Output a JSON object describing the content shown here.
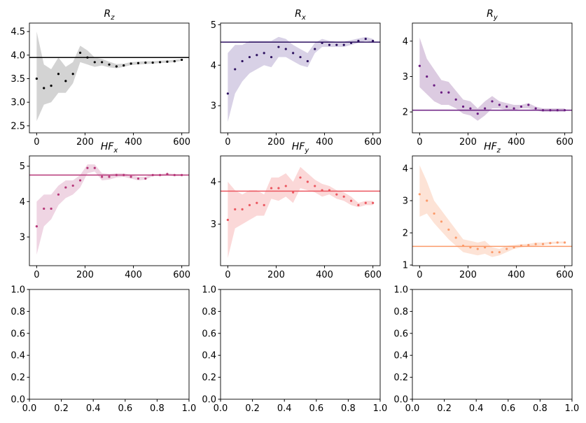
{
  "chart_data": [
    {
      "type": "scatter",
      "title": "R",
      "title_subscript": "z",
      "color": "#000000",
      "band_color": "#d3d3d3",
      "x": [
        0,
        30,
        60,
        90,
        120,
        150,
        180,
        210,
        240,
        270,
        300,
        330,
        360,
        390,
        420,
        450,
        480,
        510,
        540,
        570,
        600
      ],
      "values": [
        3.5,
        3.3,
        3.35,
        3.6,
        3.45,
        3.6,
        4.05,
        3.95,
        3.85,
        3.85,
        3.8,
        3.76,
        3.78,
        3.82,
        3.83,
        3.84,
        3.84,
        3.85,
        3.86,
        3.87,
        3.9
      ],
      "band_lower": [
        2.6,
        2.95,
        3.0,
        3.2,
        3.2,
        3.4,
        3.85,
        3.8,
        3.75,
        3.78,
        3.74,
        3.72,
        3.75,
        3.79,
        3.8,
        3.81,
        3.82,
        3.83,
        3.84,
        3.85,
        3.88
      ],
      "band_upper": [
        4.5,
        3.8,
        3.7,
        3.95,
        3.75,
        3.85,
        4.2,
        4.1,
        3.95,
        3.92,
        3.86,
        3.81,
        3.82,
        3.85,
        3.86,
        3.87,
        3.87,
        3.88,
        3.89,
        3.9,
        3.92
      ],
      "reference_line": 3.95,
      "xlim": [
        -30,
        630
      ],
      "xticks": [
        0,
        200,
        400,
        600
      ],
      "ylim": [
        2.35,
        4.68
      ],
      "yticks": [
        2.5,
        {
          "value": 3,
          "label": "3.0"
        },
        3.5,
        {
          "value": 4,
          "label": "4.0"
        },
        4.5
      ]
    },
    {
      "type": "scatter",
      "title": "R",
      "title_subscript": "x",
      "color": "#2d1160",
      "band_color": "#d8d1e6",
      "x": [
        0,
        30,
        60,
        90,
        120,
        150,
        180,
        210,
        240,
        270,
        300,
        330,
        360,
        390,
        420,
        450,
        480,
        510,
        540,
        570,
        600
      ],
      "values": [
        3.3,
        3.9,
        4.1,
        4.2,
        4.25,
        4.3,
        4.2,
        4.45,
        4.4,
        4.3,
        4.2,
        4.1,
        4.4,
        4.55,
        4.5,
        4.5,
        4.5,
        4.55,
        4.6,
        4.65,
        4.6
      ],
      "band_lower": [
        2.6,
        3.3,
        3.6,
        3.8,
        3.9,
        4.0,
        3.95,
        4.2,
        4.2,
        4.1,
        4.0,
        3.95,
        4.3,
        4.45,
        4.45,
        4.45,
        4.45,
        4.5,
        4.55,
        4.6,
        4.57
      ],
      "band_upper": [
        4.3,
        4.5,
        4.5,
        4.6,
        4.6,
        4.6,
        4.6,
        4.7,
        4.65,
        4.5,
        4.4,
        4.3,
        4.55,
        4.65,
        4.6,
        4.58,
        4.58,
        4.62,
        4.66,
        4.7,
        4.65
      ],
      "reference_line": 4.57,
      "xlim": [
        -30,
        630
      ],
      "xticks": [
        0,
        200,
        400,
        600
      ],
      "ylim": [
        2.33,
        5.04
      ],
      "yticks": [
        3,
        4,
        5
      ]
    },
    {
      "type": "scatter",
      "title": "R",
      "title_subscript": "y",
      "color": "#6a1c81",
      "band_color": "#dccbe1",
      "x": [
        0,
        30,
        60,
        90,
        120,
        150,
        180,
        210,
        240,
        270,
        300,
        330,
        360,
        390,
        420,
        450,
        480,
        510,
        540,
        570,
        600
      ],
      "values": [
        3.3,
        3.0,
        2.75,
        2.55,
        2.55,
        2.35,
        2.15,
        2.1,
        1.95,
        2.1,
        2.3,
        2.2,
        2.15,
        2.1,
        2.15,
        2.2,
        2.1,
        2.05,
        2.05,
        2.05,
        2.05
      ],
      "band_lower": [
        2.7,
        2.5,
        2.3,
        2.2,
        2.2,
        2.1,
        1.95,
        1.9,
        1.75,
        1.9,
        2.1,
        2.1,
        2.05,
        2.05,
        2.1,
        2.1,
        2.05,
        2.0,
        2.0,
        2.0,
        2.0
      ],
      "band_upper": [
        4.1,
        3.5,
        3.2,
        2.9,
        2.85,
        2.6,
        2.35,
        2.3,
        2.1,
        2.3,
        2.45,
        2.3,
        2.25,
        2.2,
        2.2,
        2.25,
        2.15,
        2.1,
        2.1,
        2.1,
        2.1
      ],
      "reference_line": 2.05,
      "xlim": [
        -30,
        630
      ],
      "xticks": [
        0,
        200,
        400,
        600
      ],
      "ylim": [
        1.41,
        4.51
      ],
      "yticks": [
        2,
        3,
        4
      ]
    },
    {
      "type": "scatter",
      "title": "HF",
      "title_subscript": "x",
      "color": "#b73779",
      "band_color": "#efd5e3",
      "x": [
        0,
        30,
        60,
        90,
        120,
        150,
        180,
        210,
        240,
        270,
        300,
        330,
        360,
        390,
        420,
        450,
        480,
        510,
        540,
        570,
        600
      ],
      "values": [
        3.3,
        3.8,
        3.8,
        4.2,
        4.4,
        4.45,
        4.6,
        4.95,
        4.95,
        4.7,
        4.7,
        4.75,
        4.75,
        4.7,
        4.65,
        4.65,
        4.75,
        4.75,
        4.78,
        4.75,
        4.75
      ],
      "band_lower": [
        2.5,
        3.3,
        3.5,
        3.9,
        4.1,
        4.2,
        4.4,
        4.8,
        4.85,
        4.6,
        4.62,
        4.68,
        4.7,
        4.65,
        4.6,
        4.62,
        4.72,
        4.72,
        4.75,
        4.72,
        4.72
      ],
      "band_upper": [
        4.0,
        4.2,
        4.2,
        4.45,
        4.6,
        4.6,
        4.75,
        5.05,
        5.05,
        4.8,
        4.78,
        4.8,
        4.8,
        4.75,
        4.7,
        4.7,
        4.78,
        4.78,
        4.8,
        4.78,
        4.78
      ],
      "reference_line": 4.75,
      "xlim": [
        -30,
        630
      ],
      "xticks": [
        0,
        200,
        400,
        600
      ],
      "ylim": [
        2.19,
        5.29
      ],
      "yticks": [
        3,
        4,
        5
      ]
    },
    {
      "type": "scatter",
      "title": "HF",
      "title_subscript": "y",
      "color": "#eb5760",
      "band_color": "#fbd8d8",
      "x": [
        0,
        30,
        60,
        90,
        120,
        150,
        180,
        210,
        240,
        270,
        300,
        330,
        360,
        390,
        420,
        450,
        480,
        510,
        540,
        570,
        600
      ],
      "values": [
        3.1,
        3.35,
        3.35,
        3.45,
        3.5,
        3.45,
        3.85,
        3.85,
        3.9,
        3.75,
        4.1,
        4.0,
        3.9,
        3.8,
        3.8,
        3.7,
        3.65,
        3.55,
        3.45,
        3.5,
        3.5
      ],
      "band_lower": [
        2.2,
        2.9,
        3.0,
        3.1,
        3.2,
        3.2,
        3.6,
        3.55,
        3.65,
        3.5,
        3.85,
        3.8,
        3.75,
        3.65,
        3.7,
        3.6,
        3.55,
        3.45,
        3.4,
        3.45,
        3.45
      ],
      "band_upper": [
        4.0,
        3.8,
        3.7,
        3.8,
        3.8,
        3.7,
        4.1,
        4.1,
        4.2,
        4.0,
        4.35,
        4.2,
        4.05,
        3.95,
        3.9,
        3.8,
        3.75,
        3.65,
        3.5,
        3.55,
        3.55
      ],
      "reference_line": 3.78,
      "xlim": [
        -30,
        630
      ],
      "xticks": [
        0,
        200,
        400,
        600
      ],
      "ylim": [
        2.02,
        4.61
      ],
      "yticks": [
        3,
        4
      ]
    },
    {
      "type": "scatter",
      "title": "HF",
      "title_subscript": "z",
      "color": "#fb9a6a",
      "band_color": "#fde3d6",
      "x": [
        0,
        30,
        60,
        90,
        120,
        150,
        180,
        210,
        240,
        270,
        300,
        330,
        360,
        390,
        420,
        450,
        480,
        510,
        540,
        570,
        600
      ],
      "values": [
        3.2,
        3.0,
        2.6,
        2.35,
        2.1,
        1.85,
        1.6,
        1.55,
        1.5,
        1.55,
        1.4,
        1.4,
        1.5,
        1.55,
        1.6,
        1.62,
        1.65,
        1.65,
        1.68,
        1.7,
        1.7
      ],
      "band_lower": [
        2.5,
        2.6,
        2.3,
        2.05,
        1.8,
        1.6,
        1.4,
        1.35,
        1.3,
        1.35,
        1.25,
        1.3,
        1.4,
        1.5,
        1.55,
        1.58,
        1.6,
        1.62,
        1.65,
        1.67,
        1.67
      ],
      "band_upper": [
        4.1,
        3.6,
        3.0,
        2.7,
        2.4,
        2.1,
        1.8,
        1.75,
        1.7,
        1.75,
        1.55,
        1.5,
        1.6,
        1.62,
        1.65,
        1.66,
        1.7,
        1.7,
        1.72,
        1.73,
        1.73
      ],
      "reference_line": 1.58,
      "xlim": [
        -30,
        630
      ],
      "xticks": [
        0,
        200,
        400,
        600
      ],
      "ylim": [
        0.98,
        4.39
      ],
      "yticks": [
        1,
        2,
        3,
        4
      ]
    },
    {
      "type": "empty",
      "xlim": [
        0,
        1
      ],
      "ylim": [
        0,
        1
      ],
      "xticks": [
        {
          "value": 0,
          "label": "0.0"
        },
        0.2,
        0.4,
        0.6,
        0.8,
        {
          "value": 1,
          "label": "1.0"
        }
      ],
      "yticks": [
        {
          "value": 0,
          "label": "0.0"
        },
        0.2,
        0.4,
        0.6,
        0.8,
        {
          "value": 1,
          "label": "1.0"
        }
      ]
    },
    {
      "type": "empty",
      "xlim": [
        0,
        1
      ],
      "ylim": [
        0,
        1
      ],
      "xticks": [
        {
          "value": 0,
          "label": "0.0"
        },
        0.2,
        0.4,
        0.6,
        0.8,
        {
          "value": 1,
          "label": "1.0"
        }
      ],
      "yticks": [
        {
          "value": 0,
          "label": "0.0"
        },
        0.2,
        0.4,
        0.6,
        0.8,
        {
          "value": 1,
          "label": "1.0"
        }
      ]
    },
    {
      "type": "empty",
      "xlim": [
        0,
        1
      ],
      "ylim": [
        0,
        1
      ],
      "xticks": [
        {
          "value": 0,
          "label": "0.0"
        },
        0.2,
        0.4,
        0.6,
        0.8,
        {
          "value": 1,
          "label": "1.0"
        }
      ],
      "yticks": [
        {
          "value": 0,
          "label": "0.0"
        },
        0.2,
        0.4,
        0.6,
        0.8,
        {
          "value": 1,
          "label": "1.0"
        }
      ]
    }
  ]
}
